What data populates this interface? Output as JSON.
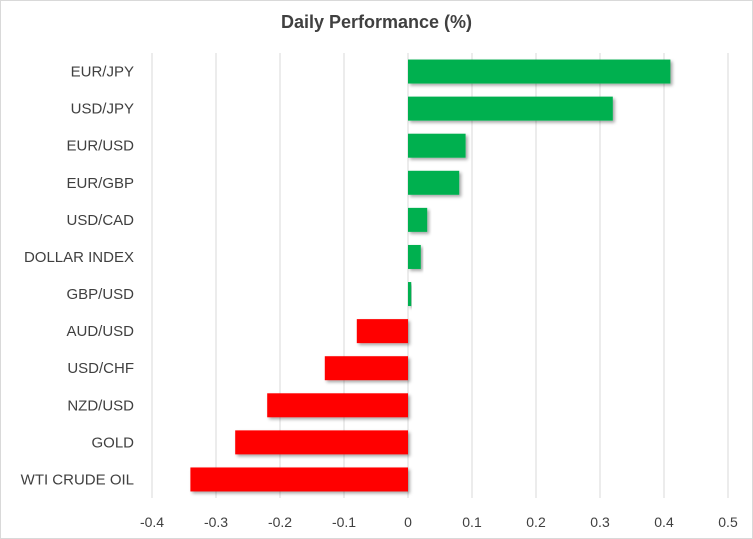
{
  "chart_data": {
    "type": "bar",
    "orientation": "horizontal",
    "title": "Daily Performance (%)",
    "xlabel": "",
    "ylabel": "",
    "categories": [
      "EUR/JPY",
      "USD/JPY",
      "EUR/USD",
      "EUR/GBP",
      "USD/CAD",
      "DOLLAR INDEX",
      "GBP/USD",
      "AUD/USD",
      "USD/CHF",
      "NZD/USD",
      "GOLD",
      "WTI CRUDE OIL"
    ],
    "values": [
      0.41,
      0.32,
      0.09,
      0.08,
      0.03,
      0.02,
      0.005,
      -0.08,
      -0.13,
      -0.22,
      -0.27,
      -0.34
    ],
    "xlim": [
      -0.4,
      0.5
    ],
    "xticks": [
      "-0.4",
      "-0.3",
      "-0.2",
      "-0.1",
      "0",
      "0.1",
      "0.2",
      "0.3",
      "0.4",
      "0.5"
    ],
    "grid": "vertical",
    "legend": "none",
    "colors": {
      "positive": "#00b050",
      "negative": "#ff0000",
      "gridline": "#d9d9d9",
      "text": "#404040"
    }
  }
}
